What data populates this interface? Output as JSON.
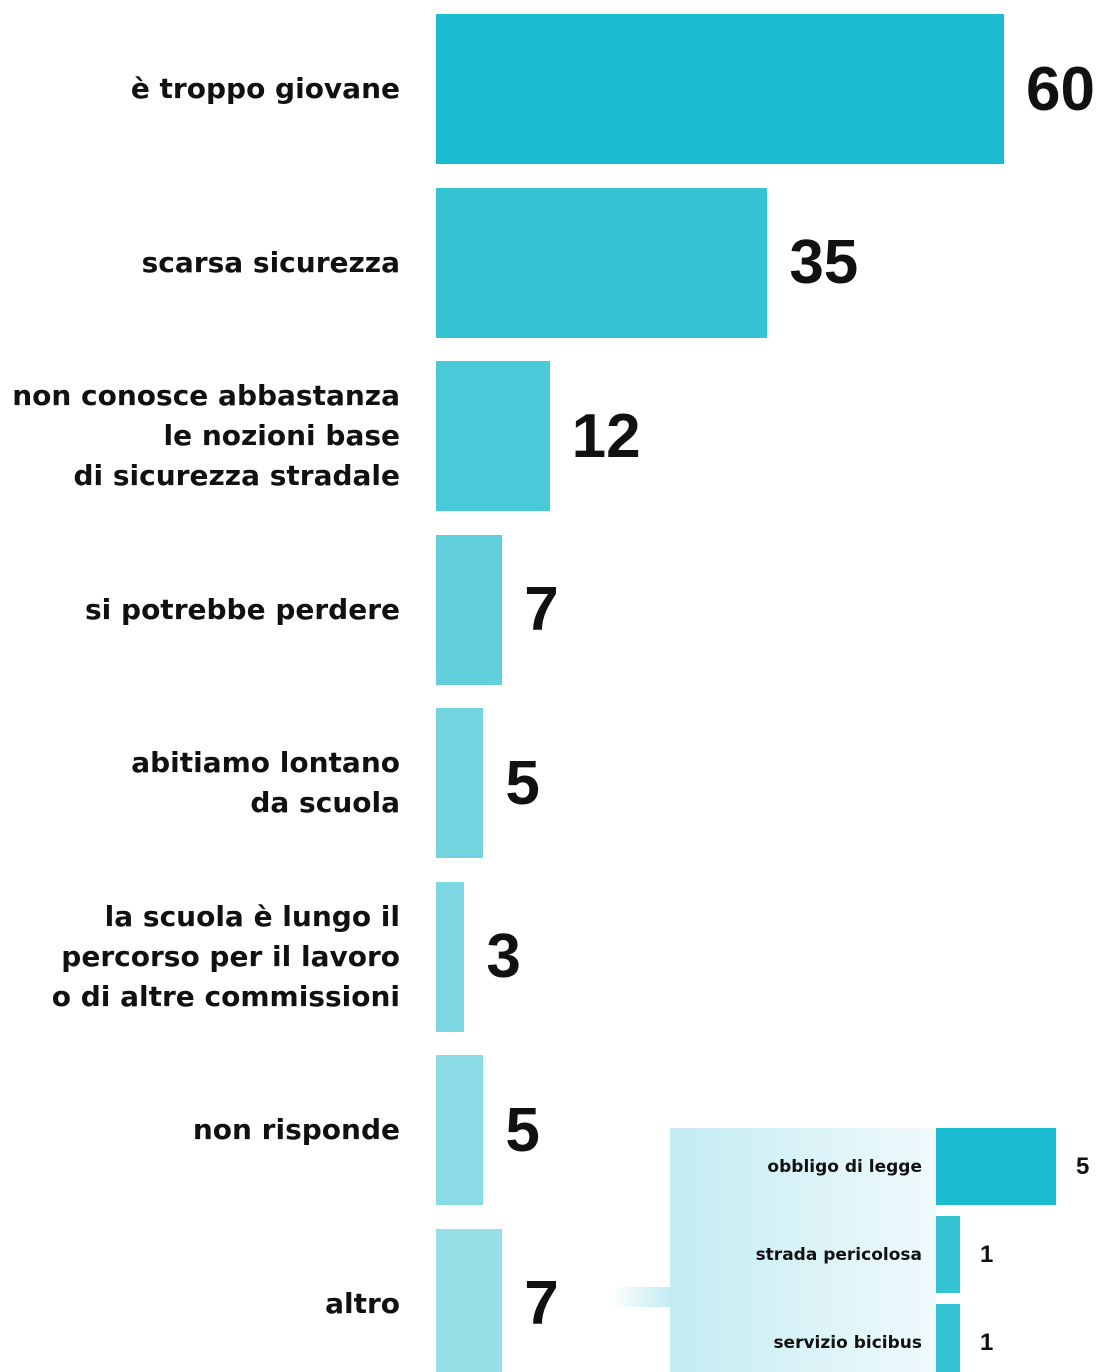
{
  "chart_data": [
    {
      "type": "bar",
      "categories": [
        "è troppo giovane",
        "scarsa sicurezza",
        "non conosce abbastanza\nle nozioni base\ndi sicurezza stradale",
        "si potrebbe perdere",
        "abitiamo lontano\nda scuola",
        "la scuola è lungo il\npercorso per il lavoro\no di altre commissioni",
        "non risponde",
        "altro"
      ],
      "values": [
        60,
        35,
        12,
        7,
        5,
        3,
        5,
        7
      ],
      "colors": [
        "#1dbdd1",
        "#35c4d4",
        "#4ac9d8",
        "#62cfdc",
        "#74d4e0",
        "#7dd7e2",
        "#8adbe5",
        "#96dfe7"
      ]
    },
    {
      "type": "bar",
      "categories": [
        "obbligo di legge",
        "strada pericolosa",
        "servizio bicibus"
      ],
      "values": [
        5,
        1,
        1
      ],
      "colors": [
        "#1dbdd1",
        "#35c4d4",
        "#35c4d4"
      ]
    }
  ]
}
